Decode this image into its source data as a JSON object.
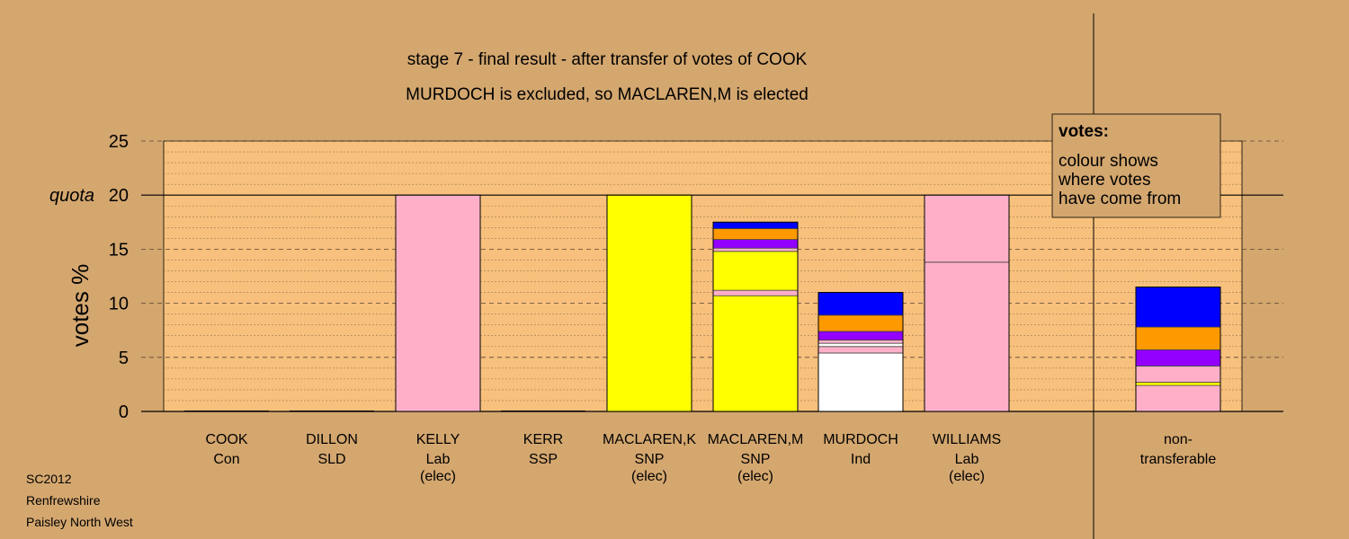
{
  "chart_data": {
    "type": "bar",
    "title": "stage 7 - final result - after transfer of votes of COOK",
    "subtitle": "MURDOCH is excluded, so MACLAREN,M is elected",
    "ylabel": "votes %",
    "quota_label": "quota",
    "quota": 20,
    "ylim": [
      0,
      25
    ],
    "yticks": [
      0,
      5,
      10,
      15,
      20,
      25
    ],
    "grid": true,
    "legend": {
      "title": "votes:",
      "lines": [
        "colour shows",
        "where votes",
        "have come from"
      ],
      "placement": "top-right"
    },
    "candidates": [
      {
        "name": "COOK",
        "party": "Con",
        "status": "",
        "segments": []
      },
      {
        "name": "DILLON",
        "party": "SLD",
        "status": "",
        "segments": []
      },
      {
        "name": "KELLY",
        "party": "Lab",
        "status": "(elec)",
        "segments": [
          {
            "value": 20.0,
            "color": "#ffb0c8"
          }
        ]
      },
      {
        "name": "KERR",
        "party": "SSP",
        "status": "",
        "segments": []
      },
      {
        "name": "MACLAREN,K",
        "party": "SNP",
        "status": "(elec)",
        "segments": [
          {
            "value": 20.0,
            "color": "#ffff00"
          }
        ]
      },
      {
        "name": "MACLAREN,M",
        "party": "SNP",
        "status": "(elec)",
        "segments": [
          {
            "value": 10.7,
            "color": "#ffff00"
          },
          {
            "value": 0.5,
            "color": "#ffb0c8"
          },
          {
            "value": 3.6,
            "color": "#ffff00"
          },
          {
            "value": 0.3,
            "color": "#ffb0c8"
          },
          {
            "value": 0.8,
            "color": "#9400ff"
          },
          {
            "value": 1.0,
            "color": "#ff9900"
          },
          {
            "value": 0.6,
            "color": "#0000ff"
          }
        ]
      },
      {
        "name": "MURDOCH",
        "party": "Ind",
        "status": "",
        "segments": [
          {
            "value": 5.4,
            "color": "#ffffff"
          },
          {
            "value": 0.6,
            "color": "#ffb0c8"
          },
          {
            "value": 0.3,
            "color": "#ffffff"
          },
          {
            "value": 0.3,
            "color": "#ffb0c8"
          },
          {
            "value": 0.8,
            "color": "#9400ff"
          },
          {
            "value": 1.5,
            "color": "#ff9900"
          },
          {
            "value": 2.1,
            "color": "#0000ff"
          }
        ]
      },
      {
        "name": "WILLIAMS",
        "party": "Lab",
        "status": "(elec)",
        "segments": [
          {
            "value": 13.8,
            "color": "#ffb0c8"
          },
          {
            "value": 6.2,
            "color": "#ffb0c8"
          }
        ]
      },
      {
        "name": "non-",
        "party": "transferable",
        "status": "",
        "segments": [
          {
            "value": 2.4,
            "color": "#ffb0c8"
          },
          {
            "value": 0.3,
            "color": "#ffff00"
          },
          {
            "value": 1.5,
            "color": "#ffb0c8"
          },
          {
            "value": 1.5,
            "color": "#9400ff"
          },
          {
            "value": 2.1,
            "color": "#ff9900"
          },
          {
            "value": 3.7,
            "color": "#0000ff"
          }
        ]
      }
    ]
  },
  "footer": {
    "line1": "SC2012",
    "line2": "Renfrewshire",
    "line3": "Paisley North West"
  },
  "colors": {
    "background": "#d4a76f",
    "plot_area": "#f7c07c"
  }
}
